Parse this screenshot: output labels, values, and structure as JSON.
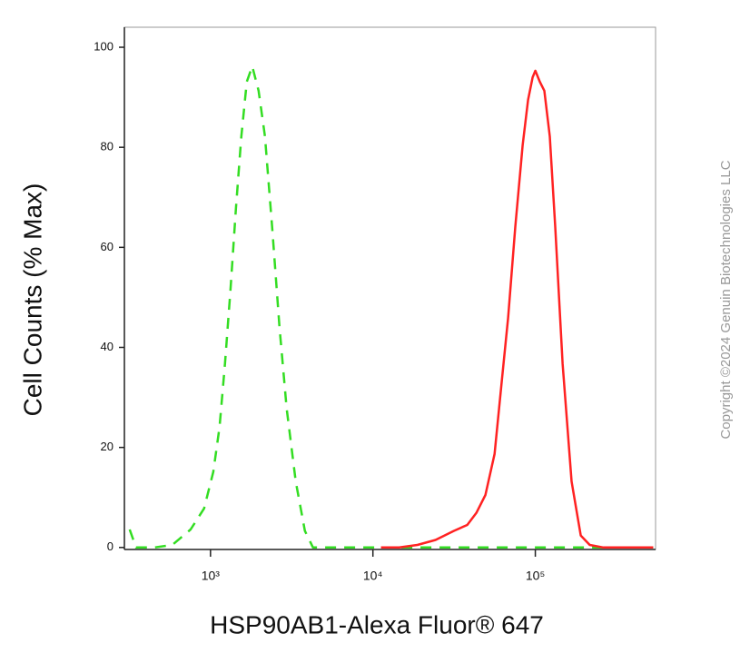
{
  "chart_data": {
    "type": "line",
    "xlabel": "HSP90AB1-Alexa Fluor® 647",
    "ylabel": "Cell Counts (% Max)",
    "watermark": "Copyright ©2024 Genuin Biotechnologies LLC",
    "xscale": "log",
    "xlim": [
      295,
      550000
    ],
    "ylim": [
      -0.4,
      104
    ],
    "xticks": [
      {
        "value": 1000,
        "label": "10³"
      },
      {
        "value": 10000,
        "label": "10⁴"
      },
      {
        "value": 100000,
        "label": "10⁵"
      }
    ],
    "yticks": [
      0,
      20,
      40,
      60,
      80,
      100
    ],
    "series": [
      {
        "color": "#33dd22",
        "dashed": true,
        "x": [
          318,
          348,
          451,
          582,
          754,
          914,
          1040,
          1137,
          1228,
          1327,
          1433,
          1549,
          1673,
          1807,
          1977,
          2163,
          2397,
          2659,
          2945,
          3350,
          3811,
          4277,
          8690,
          31400,
          113700,
          532000
        ],
        "values": [
          3.6,
          0,
          0,
          0.5,
          3.6,
          7.8,
          15.1,
          24.1,
          36.8,
          51.4,
          67.7,
          82.2,
          93.1,
          96.2,
          91.3,
          82.2,
          64.1,
          44.1,
          27.8,
          13.2,
          3.3,
          0,
          0,
          0,
          0,
          0
        ]
      },
      {
        "color": "#ff2222",
        "dashed": false,
        "x": [
          11220,
          14520,
          18780,
          24300,
          31430,
          38100,
          43350,
          49300,
          56100,
          62100,
          67950,
          75300,
          83500,
          90200,
          96200,
          100000,
          106600,
          113700,
          122800,
          132700,
          147100,
          167200,
          190300,
          216400,
          262400,
          532000
        ],
        "values": [
          0,
          0,
          0.5,
          1.5,
          3.3,
          4.5,
          6.9,
          10.5,
          18.7,
          33.2,
          45.9,
          64.1,
          80.4,
          89.5,
          94.0,
          95.3,
          93.1,
          91.3,
          82.2,
          64.1,
          36.8,
          13.2,
          2.4,
          0.5,
          0,
          0
        ]
      }
    ]
  }
}
